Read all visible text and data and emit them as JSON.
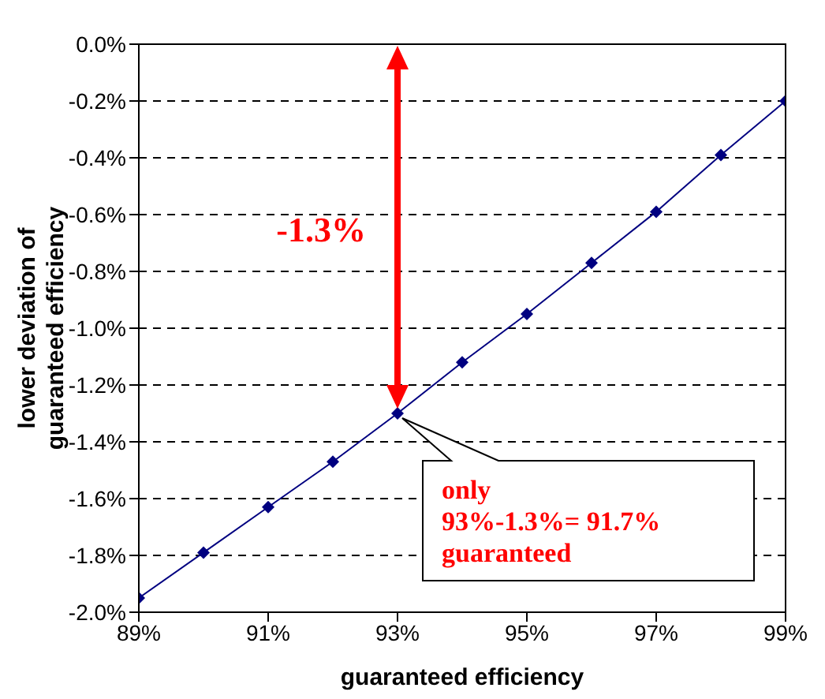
{
  "chart_data": {
    "type": "line",
    "xlabel": "guaranteed efficiency",
    "ylabel": "lower deviation of\nguaranteed efficiency",
    "x": [
      89,
      90,
      91,
      92,
      93,
      94,
      95,
      96,
      97,
      98,
      99
    ],
    "series": [
      {
        "color": "#000080",
        "values": [
          -1.95,
          -1.79,
          -1.63,
          -1.47,
          -1.3,
          -1.12,
          -0.95,
          -0.77,
          -0.59,
          -0.39,
          -0.2
        ]
      }
    ],
    "xlim": [
      89,
      99
    ],
    "xticks": [
      {
        "value": 89,
        "label": "89%"
      },
      {
        "value": 91,
        "label": "91%"
      },
      {
        "value": 93,
        "label": "93%"
      },
      {
        "value": 95,
        "label": "95%"
      },
      {
        "value": 97,
        "label": "97%"
      },
      {
        "value": 99,
        "label": "99%"
      }
    ],
    "ylim": [
      -2,
      0
    ],
    "yticks": [
      {
        "value": -2,
        "label": "-2.0%"
      },
      {
        "value": -1.8,
        "label": "-1.8%"
      },
      {
        "value": -1.6,
        "label": "-1.6%"
      },
      {
        "value": -1.4,
        "label": "-1.4%"
      },
      {
        "value": -1.2,
        "label": "-1.2%"
      },
      {
        "value": -1,
        "label": "-1.0%"
      },
      {
        "value": -0.8,
        "label": "-0.8%"
      },
      {
        "value": -0.6,
        "label": "-0.6%"
      },
      {
        "value": -0.4,
        "label": "-0.4%"
      },
      {
        "value": -0.2,
        "label": "-0.2%"
      },
      {
        "value": 0,
        "label": "0.0%"
      }
    ],
    "grid": "y",
    "marker": "diamond",
    "line_style": "solid",
    "annotations": [
      "-1.3%",
      {
        "text": "only\n93%-1.3%= 91.7%\nguaranteed",
        "x": 93,
        "y": -1.3
      }
    ]
  }
}
